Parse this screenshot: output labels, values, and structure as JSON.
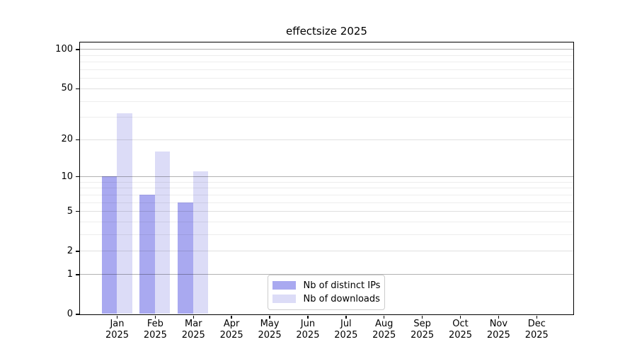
{
  "chart_data": {
    "type": "bar",
    "title": "effectsize 2025",
    "categories": [
      "Jan",
      "Feb",
      "Mar",
      "Apr",
      "May",
      "Jun",
      "Jul",
      "Aug",
      "Sep",
      "Oct",
      "Nov",
      "Dec"
    ],
    "year_label": "2025",
    "series": [
      {
        "name": "Nb of distinct IPs",
        "color": "#a9a9f0",
        "values": [
          10,
          7,
          6,
          0,
          0,
          0,
          0,
          0,
          0,
          0,
          0,
          0
        ]
      },
      {
        "name": "Nb of downloads",
        "color": "#dcdcf7",
        "values": [
          32,
          16,
          11,
          0,
          0,
          0,
          0,
          0,
          0,
          0,
          0,
          0
        ]
      }
    ],
    "xlabel": "",
    "ylabel": "",
    "y_axis": {
      "scale": "log1p",
      "ticks": [
        100,
        50,
        20,
        10,
        5,
        2,
        1,
        0
      ],
      "minor_ticks": [
        90,
        80,
        70,
        60,
        40,
        30,
        9,
        8,
        7,
        6,
        4,
        3
      ],
      "major_grid": [
        100,
        10,
        1
      ],
      "ylim": [
        0,
        113
      ]
    },
    "grid": true,
    "legend_position": "lower center"
  }
}
